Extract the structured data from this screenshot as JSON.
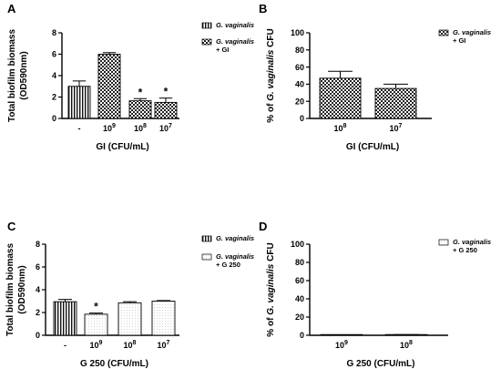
{
  "panels": [
    {
      "letter": "A",
      "ylabel": "Total biofilm biomass",
      "ylabel_unit": "(OD590nm)",
      "xlabel": "GI (CFU/mL)",
      "legend": [
        {
          "style": "stripes",
          "italic": "G. vaginalis",
          "suffix": ""
        },
        {
          "style": "check",
          "italic": "G. vaginalis",
          "suffix": "+ GI"
        }
      ]
    },
    {
      "letter": "B",
      "ylabel_italic": "G. vaginalis",
      "ylabel_pre": "% of ",
      "ylabel_post": " CFU",
      "xlabel": "GI (CFU/mL)",
      "legend": [
        {
          "style": "check",
          "italic": "G. vaginalis",
          "suffix": "+ GI"
        }
      ]
    },
    {
      "letter": "C",
      "ylabel": "Total biofilm biomass",
      "ylabel_unit": "(OD590nm)",
      "xlabel": "G 250 (CFU/mL)",
      "legend": [
        {
          "style": "stripes",
          "italic": "G. vaginalis",
          "suffix": ""
        },
        {
          "style": "dots",
          "italic": "G. vaginalis",
          "suffix": "+ G 250"
        }
      ]
    },
    {
      "letter": "D",
      "ylabel_italic": "G. vaginalis",
      "ylabel_pre": "% of ",
      "ylabel_post": " CFU",
      "xlabel": "G 250 (CFU/mL)",
      "legend": [
        {
          "style": "dots",
          "italic": "G. vaginalis",
          "suffix": "+ G 250"
        }
      ]
    }
  ],
  "chart_data": [
    {
      "type": "bar",
      "panel": "A",
      "ylabel": "Total biofilm biomass (OD590nm)",
      "xlabel": "GI (CFU/mL)",
      "ylim": [
        0,
        8
      ],
      "yticks": [
        0,
        2,
        4,
        6,
        8
      ],
      "categories": [
        "-",
        "10^9",
        "10^8",
        "10^7"
      ],
      "category_labels": [
        {
          "base": "-",
          "exp": ""
        },
        {
          "base": "10",
          "exp": "9"
        },
        {
          "base": "10",
          "exp": "8"
        },
        {
          "base": "10",
          "exp": "7"
        }
      ],
      "values": [
        3.0,
        6.0,
        1.65,
        1.5
      ],
      "errors": [
        0.5,
        0.15,
        0.2,
        0.4
      ],
      "patterns": [
        "stripes",
        "check",
        "check",
        "check"
      ],
      "significance": [
        "",
        "",
        "*",
        "*"
      ]
    },
    {
      "type": "bar",
      "panel": "B",
      "ylabel": "% of G. vaginalis CFU",
      "xlabel": "GI (CFU/mL)",
      "ylim": [
        0,
        100
      ],
      "yticks": [
        0,
        20,
        40,
        60,
        80,
        100
      ],
      "categories": [
        "10^8",
        "10^7"
      ],
      "category_labels": [
        {
          "base": "10",
          "exp": "8"
        },
        {
          "base": "10",
          "exp": "7"
        }
      ],
      "values": [
        47,
        35
      ],
      "errors": [
        8,
        5
      ],
      "patterns": [
        "check",
        "check"
      ],
      "significance": [
        "",
        ""
      ]
    },
    {
      "type": "bar",
      "panel": "C",
      "ylabel": "Total biofilm biomass (OD590nm)",
      "xlabel": "G 250 (CFU/mL)",
      "ylim": [
        0,
        8
      ],
      "yticks": [
        0,
        2,
        4,
        6,
        8
      ],
      "categories": [
        "-",
        "10^9",
        "10^8",
        "10^7"
      ],
      "category_labels": [
        {
          "base": "-",
          "exp": ""
        },
        {
          "base": "10",
          "exp": "9"
        },
        {
          "base": "10",
          "exp": "8"
        },
        {
          "base": "10",
          "exp": "7"
        }
      ],
      "values": [
        2.95,
        1.85,
        2.85,
        3.0
      ],
      "errors": [
        0.2,
        0.1,
        0.1,
        0.05
      ],
      "patterns": [
        "stripes",
        "dots",
        "dots",
        "dots"
      ],
      "significance": [
        "",
        "*",
        "",
        ""
      ]
    },
    {
      "type": "bar",
      "panel": "D",
      "ylabel": "% of G. vaginalis CFU",
      "xlabel": "G 250 (CFU/mL)",
      "ylim": [
        0,
        100
      ],
      "yticks": [
        0,
        20,
        40,
        60,
        80,
        100
      ],
      "categories": [
        "10^9",
        "10^8"
      ],
      "category_labels": [
        {
          "base": "10",
          "exp": "9"
        },
        {
          "base": "10",
          "exp": "8"
        }
      ],
      "values": [
        0.2,
        0.5
      ],
      "errors": [
        0.1,
        0.2
      ],
      "patterns": [
        "dots",
        "dots"
      ],
      "significance": [
        "",
        ""
      ]
    }
  ]
}
